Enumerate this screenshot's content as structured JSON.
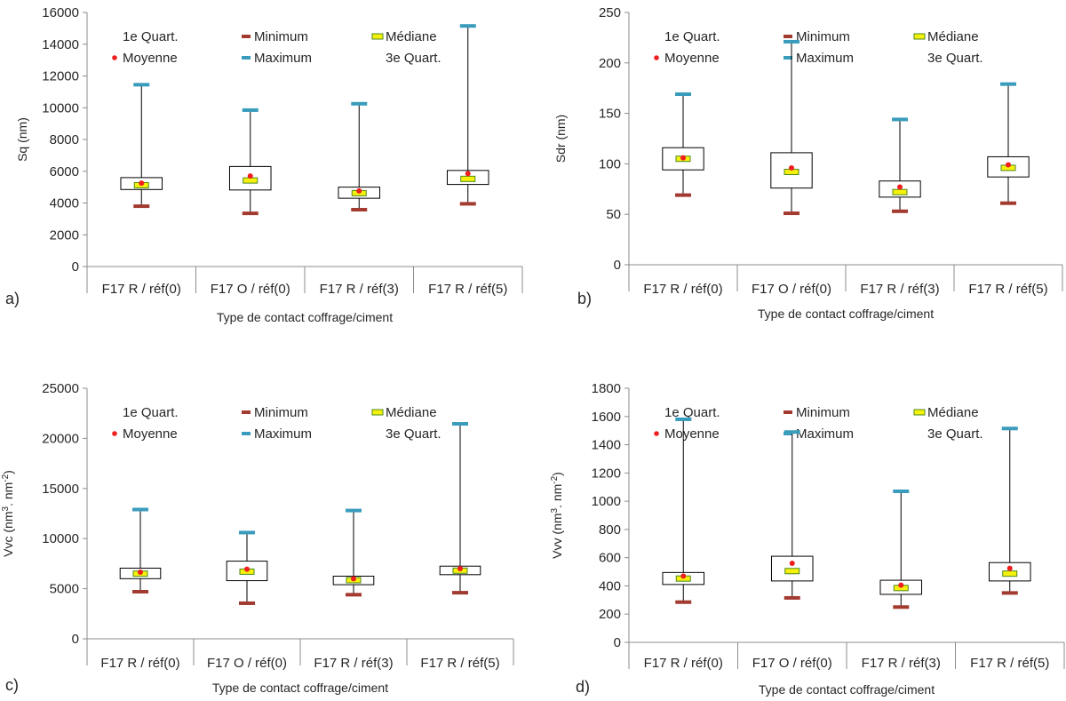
{
  "colors": {
    "minimum": "#A33A2F",
    "maximum": "#3A9CBC",
    "median_fill": "#F5F10D",
    "median_stroke": "#4D8A1A",
    "mean": "#F01E1E",
    "axis": "#8C8C8C",
    "whisker": "#000000",
    "box_stroke": "#000000"
  },
  "legend": {
    "q1": "1e Quart.",
    "minimum": "Minimum",
    "median": "Médiane",
    "mean": "Moyenne",
    "maximum": "Maximum",
    "q3": "3e Quart."
  },
  "chart_data": [
    {
      "type": "box",
      "letter": "a)",
      "ylabel": "Sq (nm)",
      "ylabel_sup": "",
      "ylabel_tail": "",
      "xlabel": "Type de contact coffrage/ciment",
      "categories": [
        "F17 R / réf(0)",
        "F17 O / réf(0)",
        "F17 R / réf(3)",
        "F17 R / réf(5)"
      ],
      "ylim": [
        0,
        16000
      ],
      "yticks": [
        0,
        2000,
        4000,
        6000,
        8000,
        10000,
        12000,
        14000,
        16000
      ],
      "min": [
        3800,
        3350,
        3580,
        3950
      ],
      "q1": [
        4850,
        4820,
        4300,
        5170
      ],
      "median": [
        5120,
        5420,
        4620,
        5520
      ],
      "mean": [
        5250,
        5700,
        4760,
        5850
      ],
      "q3": [
        5600,
        6300,
        5000,
        6050
      ],
      "max": [
        11450,
        9850,
        10250,
        15150
      ]
    },
    {
      "type": "box",
      "letter": "b)",
      "ylabel": "Sdr (nm)",
      "ylabel_sup": "",
      "ylabel_tail": "",
      "xlabel": "Type de contact coffrage/ciment",
      "categories": [
        "F17 R / réf(0)",
        "F17 O / réf(0)",
        "F17 R / réf(3)",
        "F17 R / réf(5)"
      ],
      "ylim": [
        0,
        250
      ],
      "yticks": [
        0,
        50,
        100,
        150,
        200,
        250
      ],
      "min": [
        69,
        51,
        53,
        61
      ],
      "q1": [
        94,
        76,
        67,
        87
      ],
      "median": [
        105,
        92,
        72,
        96
      ],
      "mean": [
        106,
        96,
        77,
        99
      ],
      "q3": [
        116,
        111,
        83,
        107
      ],
      "max": [
        169,
        221,
        144,
        179
      ]
    },
    {
      "type": "box",
      "letter": "c)",
      "ylabel": "Vvc (nm",
      "ylabel_sup": "3",
      "ylabel_tail": ". nm",
      "ylabel_sup2": "-2",
      "xlabel": "Type de contact coffrage/ciment",
      "categories": [
        "F17 R / réf(0)",
        "F17 O / réf(0)",
        "F17 R / réf(3)",
        "F17 R / réf(5)"
      ],
      "ylim": [
        0,
        25000
      ],
      "yticks": [
        0,
        5000,
        10000,
        15000,
        20000,
        25000
      ],
      "min": [
        4700,
        3550,
        4400,
        4600
      ],
      "q1": [
        6000,
        5800,
        5400,
        6400
      ],
      "median": [
        6500,
        6700,
        5850,
        6800
      ],
      "mean": [
        6650,
        6950,
        6000,
        7000
      ],
      "q3": [
        7050,
        7750,
        6250,
        7250
      ],
      "max": [
        12900,
        10600,
        12800,
        21450
      ]
    },
    {
      "type": "box",
      "letter": "d)",
      "ylabel": "Vvv (nm",
      "ylabel_sup": "3",
      "ylabel_tail": ". nm",
      "ylabel_sup2": "-2",
      "xlabel": "Type de contact coffrage/ciment",
      "categories": [
        "F17 R / réf(0)",
        "F17 O / réf(0)",
        "F17 R / réf(3)",
        "F17 R / réf(5)"
      ],
      "ylim": [
        0,
        1800
      ],
      "yticks": [
        0,
        200,
        400,
        600,
        800,
        1000,
        1200,
        1400,
        1600,
        1800
      ],
      "min": [
        285,
        315,
        250,
        350
      ],
      "q1": [
        410,
        435,
        340,
        435
      ],
      "median": [
        452,
        505,
        385,
        487
      ],
      "mean": [
        470,
        560,
        405,
        525
      ],
      "q3": [
        495,
        610,
        440,
        565
      ],
      "max": [
        1580,
        1490,
        1070,
        1515
      ]
    }
  ]
}
